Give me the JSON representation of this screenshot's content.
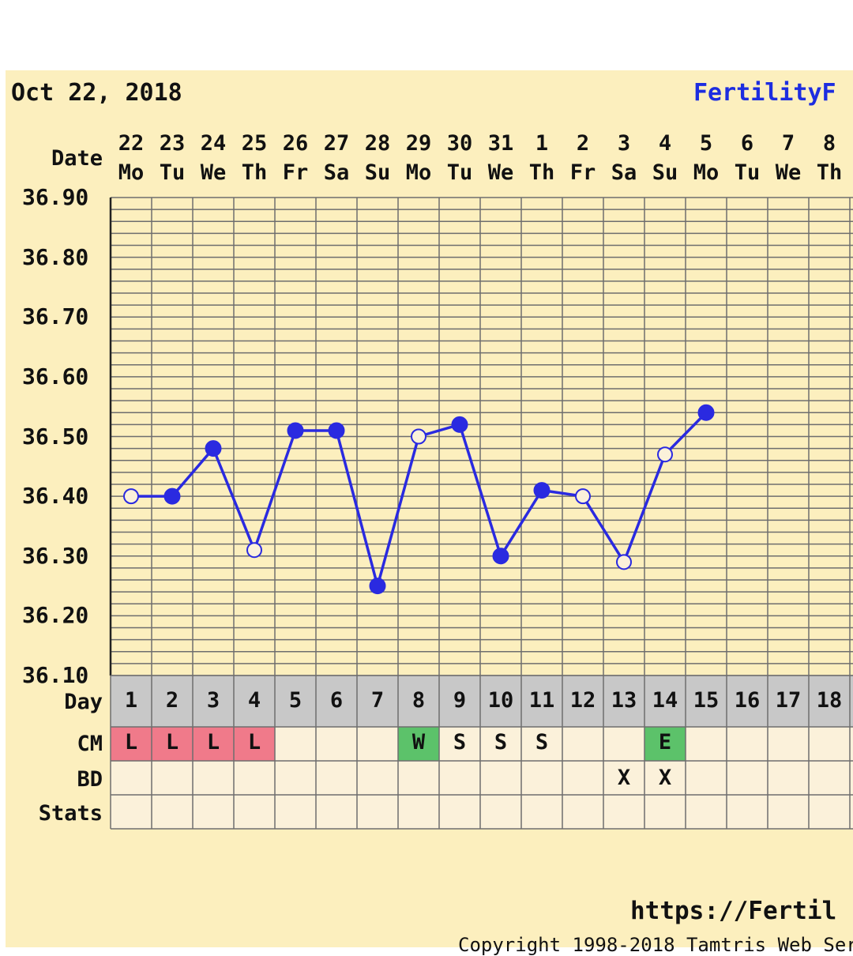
{
  "header": {
    "date": "Oct 22, 2018",
    "brand": "FertilityF"
  },
  "row_labels": {
    "date": "Date",
    "day": "Day",
    "cm": "CM",
    "bd": "BD",
    "stats": "Stats"
  },
  "chart_data": {
    "type": "line",
    "ylim": [
      36.1,
      36.9
    ],
    "yticks": [
      "36.90",
      "36.80",
      "36.70",
      "36.60",
      "36.50",
      "36.40",
      "36.30",
      "36.20",
      "36.10"
    ],
    "dates": [
      "22",
      "23",
      "24",
      "25",
      "26",
      "27",
      "28",
      "29",
      "30",
      "31",
      "1",
      "2",
      "3",
      "4",
      "5",
      "6",
      "7",
      "8",
      ""
    ],
    "weekdays": [
      "Mo",
      "Tu",
      "We",
      "Th",
      "Fr",
      "Sa",
      "Su",
      "Mo",
      "Tu",
      "We",
      "Th",
      "Fr",
      "Sa",
      "Su",
      "Mo",
      "Tu",
      "We",
      "Th",
      ""
    ],
    "cycle_days": [
      "1",
      "2",
      "3",
      "4",
      "5",
      "6",
      "7",
      "8",
      "9",
      "10",
      "11",
      "12",
      "13",
      "14",
      "15",
      "16",
      "17",
      "18",
      ""
    ],
    "temperatures": [
      36.4,
      36.4,
      36.48,
      36.31,
      36.51,
      36.51,
      36.25,
      36.5,
      36.52,
      36.3,
      36.41,
      36.4,
      36.29,
      36.47,
      36.54,
      null,
      null,
      null,
      null
    ],
    "marker_types": [
      "open",
      "filled",
      "filled",
      "open",
      "filled",
      "filled",
      "filled",
      "open",
      "filled",
      "filled",
      "filled",
      "open",
      "open",
      "open",
      "filled",
      "",
      "",
      "",
      ""
    ],
    "cm": [
      "L",
      "L",
      "L",
      "L",
      "",
      "",
      "",
      "W",
      "S",
      "S",
      "S",
      "",
      "",
      "E",
      "",
      "",
      "",
      "",
      ""
    ],
    "bd": [
      "",
      "",
      "",
      "",
      "",
      "",
      "",
      "",
      "",
      "",
      "",
      "",
      "X",
      "X",
      "",
      "",
      "",
      "",
      ""
    ],
    "colors": {
      "line": "#2a2ae0",
      "grid": "#6e6e6e",
      "day_row_bg": "#c8c8c8",
      "cm_L": "#f07a8a",
      "cm_green": "#5cc26a",
      "cell_bg": "#fbf1da"
    }
  },
  "footer": {
    "url": "https://Fertil",
    "copyright": "Copyright 1998-2018 Tamtris Web Ser"
  }
}
